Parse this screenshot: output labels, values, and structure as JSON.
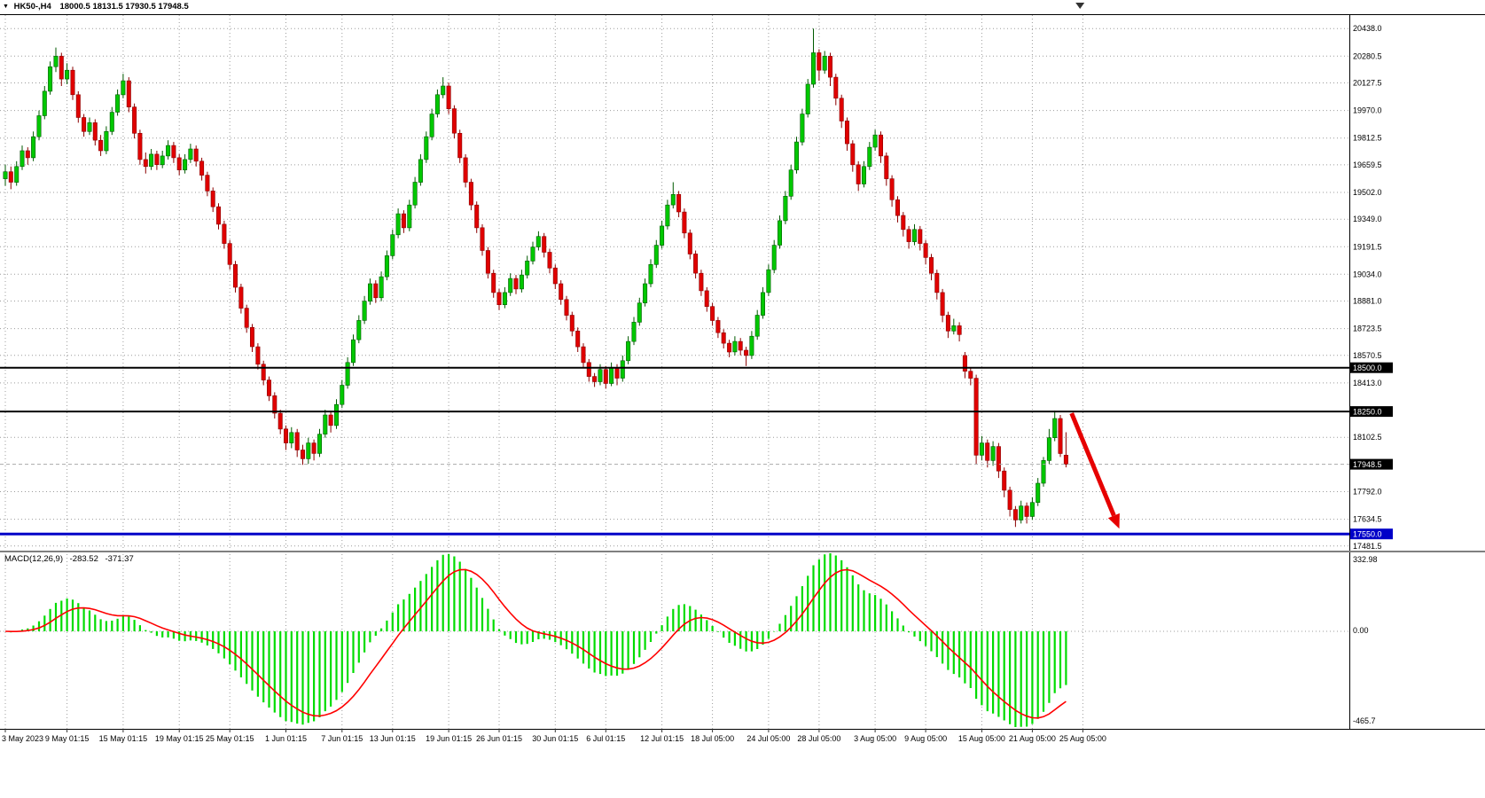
{
  "info_bar": {
    "marker_icon": "▼",
    "symbol_period": "HK50-,H4",
    "ohlc": "18000.5 18131.5 17930.5 17948.5"
  },
  "chart_data": {
    "type": "candlestick",
    "symbol": "HK50-",
    "timeframe": "H4",
    "current_bar": {
      "open": 18000.5,
      "high": 18131.5,
      "low": 17930.5,
      "close": 17948.5
    },
    "price_axis": {
      "min": 17460,
      "max": 20500,
      "labels": [
        20438.0,
        20280.5,
        20127.5,
        19970.0,
        19812.5,
        19659.5,
        19502.0,
        19349.0,
        19191.5,
        19034.0,
        18881.0,
        18723.5,
        18570.5,
        18413.0,
        18102.5,
        17792.0,
        17634.5,
        17481.5
      ]
    },
    "special_price_labels": [
      {
        "value": 18500.0,
        "text": "18500.0",
        "bg": "#000000"
      },
      {
        "value": 18250.0,
        "text": "18250.0",
        "bg": "#000000"
      },
      {
        "value": 17948.5,
        "text": "17948.5",
        "bg": "#000000"
      },
      {
        "value": 17550.0,
        "text": "17550.0",
        "bg": "#0000C8"
      }
    ],
    "hlines": [
      {
        "value": 18500.0,
        "color": "#000000",
        "width": 2
      },
      {
        "value": 18250.0,
        "color": "#000000",
        "width": 2
      },
      {
        "value": 17550.0,
        "color": "#0000C8",
        "width": 3
      },
      {
        "value": 17948.5,
        "color": "#AAAAAA",
        "width": 1,
        "dashed": true
      }
    ],
    "x_labels": [
      {
        "i": 0,
        "text": "3 May 2023"
      },
      {
        "i": 11,
        "text": "9 May 01:15"
      },
      {
        "i": 21,
        "text": "15 May 01:15"
      },
      {
        "i": 31,
        "text": "19 May 01:15"
      },
      {
        "i": 40,
        "text": "25 May 01:15"
      },
      {
        "i": 50,
        "text": "1 Jun 01:15"
      },
      {
        "i": 60,
        "text": "7 Jun 01:15"
      },
      {
        "i": 69,
        "text": "13 Jun 01:15"
      },
      {
        "i": 79,
        "text": "19 Jun 01:15"
      },
      {
        "i": 88,
        "text": "26 Jun 01:15"
      },
      {
        "i": 98,
        "text": "30 Jun 01:15"
      },
      {
        "i": 107,
        "text": "6 Jul 01:15"
      },
      {
        "i": 117,
        "text": "12 Jul 01:15"
      },
      {
        "i": 126,
        "text": "18 Jul 05:00"
      },
      {
        "i": 136,
        "text": "24 Jul 05:00"
      },
      {
        "i": 145,
        "text": "28 Jul 05:00"
      },
      {
        "i": 155,
        "text": "3 Aug 05:00"
      },
      {
        "i": 164,
        "text": "9 Aug 05:00"
      },
      {
        "i": 174,
        "text": "15 Aug 05:00"
      },
      {
        "i": 183,
        "text": "21 Aug 05:00"
      },
      {
        "i": 192,
        "text": "25 Aug 05:00"
      }
    ],
    "candles": [
      [
        19580,
        19660,
        19540,
        19620
      ],
      [
        19620,
        19650,
        19520,
        19560
      ],
      [
        19560,
        19680,
        19540,
        19650
      ],
      [
        19650,
        19770,
        19630,
        19740
      ],
      [
        19740,
        19760,
        19660,
        19700
      ],
      [
        19700,
        19850,
        19680,
        19820
      ],
      [
        19820,
        19970,
        19800,
        19940
      ],
      [
        19940,
        20110,
        19920,
        20080
      ],
      [
        20080,
        20250,
        20060,
        20220
      ],
      [
        20220,
        20330,
        20190,
        20280
      ],
      [
        20280,
        20300,
        20110,
        20150
      ],
      [
        20150,
        20240,
        20120,
        20200
      ],
      [
        20200,
        20220,
        20030,
        20060
      ],
      [
        20060,
        20080,
        19900,
        19930
      ],
      [
        19930,
        19950,
        19820,
        19850
      ],
      [
        19850,
        19930,
        19830,
        19900
      ],
      [
        19900,
        19920,
        19770,
        19800
      ],
      [
        19800,
        19830,
        19710,
        19740
      ],
      [
        19740,
        19880,
        19720,
        19850
      ],
      [
        19850,
        19990,
        19830,
        19960
      ],
      [
        19960,
        20090,
        19940,
        20060
      ],
      [
        20060,
        20180,
        20040,
        20140
      ],
      [
        20140,
        20160,
        19960,
        19990
      ],
      [
        19990,
        20010,
        19810,
        19840
      ],
      [
        19840,
        19860,
        19660,
        19690
      ],
      [
        19690,
        19730,
        19610,
        19650
      ],
      [
        19650,
        19750,
        19630,
        19720
      ],
      [
        19720,
        19740,
        19630,
        19660
      ],
      [
        19660,
        19740,
        19640,
        19710
      ],
      [
        19710,
        19800,
        19690,
        19770
      ],
      [
        19770,
        19790,
        19670,
        19700
      ],
      [
        19700,
        19720,
        19600,
        19630
      ],
      [
        19630,
        19720,
        19610,
        19690
      ],
      [
        19690,
        19780,
        19670,
        19750
      ],
      [
        19750,
        19770,
        19650,
        19680
      ],
      [
        19680,
        19700,
        19570,
        19600
      ],
      [
        19600,
        19620,
        19480,
        19510
      ],
      [
        19510,
        19530,
        19390,
        19420
      ],
      [
        19420,
        19440,
        19290,
        19320
      ],
      [
        19320,
        19340,
        19180,
        19210
      ],
      [
        19210,
        19230,
        19060,
        19090
      ],
      [
        19090,
        19110,
        18930,
        18960
      ],
      [
        18960,
        18980,
        18810,
        18840
      ],
      [
        18840,
        18860,
        18700,
        18730
      ],
      [
        18730,
        18750,
        18590,
        18620
      ],
      [
        18620,
        18640,
        18490,
        18520
      ],
      [
        18520,
        18540,
        18400,
        18430
      ],
      [
        18430,
        18450,
        18310,
        18340
      ],
      [
        18340,
        18360,
        18210,
        18240
      ],
      [
        18240,
        18260,
        18120,
        18150
      ],
      [
        18150,
        18170,
        18030,
        18070
      ],
      [
        18070,
        18160,
        18040,
        18130
      ],
      [
        18130,
        18150,
        17990,
        18030
      ],
      [
        18030,
        18060,
        17945,
        17980
      ],
      [
        17980,
        18100,
        17950,
        18070
      ],
      [
        18070,
        18090,
        17970,
        18010
      ],
      [
        18010,
        18150,
        17990,
        18120
      ],
      [
        18120,
        18260,
        18100,
        18230
      ],
      [
        18230,
        18250,
        18130,
        18170
      ],
      [
        18170,
        18320,
        18150,
        18290
      ],
      [
        18290,
        18430,
        18270,
        18400
      ],
      [
        18400,
        18560,
        18380,
        18530
      ],
      [
        18530,
        18690,
        18510,
        18660
      ],
      [
        18660,
        18800,
        18640,
        18770
      ],
      [
        18770,
        18910,
        18750,
        18880
      ],
      [
        18880,
        19010,
        18860,
        18980
      ],
      [
        18980,
        19000,
        18870,
        18900
      ],
      [
        18900,
        19050,
        18880,
        19020
      ],
      [
        19020,
        19170,
        19000,
        19140
      ],
      [
        19140,
        19290,
        19120,
        19260
      ],
      [
        19260,
        19410,
        19240,
        19380
      ],
      [
        19380,
        19400,
        19270,
        19300
      ],
      [
        19300,
        19460,
        19280,
        19430
      ],
      [
        19430,
        19590,
        19410,
        19560
      ],
      [
        19560,
        19720,
        19540,
        19690
      ],
      [
        19690,
        19850,
        19670,
        19820
      ],
      [
        19820,
        19980,
        19800,
        19950
      ],
      [
        19950,
        20090,
        19930,
        20060
      ],
      [
        20060,
        20160,
        20040,
        20110
      ],
      [
        20110,
        20130,
        19950,
        19980
      ],
      [
        19980,
        20000,
        19810,
        19840
      ],
      [
        19840,
        19860,
        19670,
        19700
      ],
      [
        19700,
        19720,
        19530,
        19560
      ],
      [
        19560,
        19580,
        19400,
        19430
      ],
      [
        19430,
        19450,
        19270,
        19300
      ],
      [
        19300,
        19320,
        19140,
        19170
      ],
      [
        19170,
        19190,
        19010,
        19040
      ],
      [
        19040,
        19060,
        18900,
        18930
      ],
      [
        18930,
        18950,
        18830,
        18860
      ],
      [
        18860,
        18960,
        18840,
        18930
      ],
      [
        18930,
        19040,
        18910,
        19010
      ],
      [
        19010,
        19030,
        18920,
        18950
      ],
      [
        18950,
        19060,
        18930,
        19030
      ],
      [
        19030,
        19140,
        19010,
        19110
      ],
      [
        19110,
        19220,
        19090,
        19190
      ],
      [
        19190,
        19280,
        19170,
        19250
      ],
      [
        19250,
        19270,
        19130,
        19160
      ],
      [
        19160,
        19180,
        19040,
        19070
      ],
      [
        19070,
        19090,
        18950,
        18980
      ],
      [
        18980,
        19000,
        18860,
        18890
      ],
      [
        18890,
        18910,
        18770,
        18800
      ],
      [
        18800,
        18820,
        18680,
        18710
      ],
      [
        18710,
        18730,
        18590,
        18620
      ],
      [
        18620,
        18640,
        18500,
        18530
      ],
      [
        18530,
        18550,
        18420,
        18450
      ],
      [
        18450,
        18470,
        18390,
        18420
      ],
      [
        18420,
        18520,
        18400,
        18490
      ],
      [
        18490,
        18510,
        18380,
        18410
      ],
      [
        18410,
        18530,
        18395,
        18500
      ],
      [
        18500,
        18520,
        18400,
        18440
      ],
      [
        18440,
        18570,
        18420,
        18540
      ],
      [
        18540,
        18680,
        18520,
        18650
      ],
      [
        18650,
        18790,
        18630,
        18760
      ],
      [
        18760,
        18900,
        18740,
        18870
      ],
      [
        18870,
        19010,
        18850,
        18980
      ],
      [
        18980,
        19120,
        18960,
        19090
      ],
      [
        19090,
        19230,
        19070,
        19200
      ],
      [
        19200,
        19340,
        19180,
        19310
      ],
      [
        19310,
        19460,
        19290,
        19430
      ],
      [
        19430,
        19560,
        19410,
        19490
      ],
      [
        19490,
        19510,
        19360,
        19390
      ],
      [
        19390,
        19410,
        19240,
        19270
      ],
      [
        19270,
        19290,
        19120,
        19150
      ],
      [
        19150,
        19170,
        19010,
        19040
      ],
      [
        19040,
        19060,
        18910,
        18940
      ],
      [
        18940,
        18960,
        18820,
        18850
      ],
      [
        18850,
        18870,
        18740,
        18770
      ],
      [
        18770,
        18790,
        18670,
        18700
      ],
      [
        18700,
        18720,
        18610,
        18640
      ],
      [
        18640,
        18660,
        18560,
        18590
      ],
      [
        18590,
        18680,
        18570,
        18650
      ],
      [
        18650,
        18670,
        18570,
        18600
      ],
      [
        18600,
        18620,
        18510,
        18570
      ],
      [
        18570,
        18710,
        18550,
        18680
      ],
      [
        18680,
        18830,
        18660,
        18800
      ],
      [
        18800,
        18960,
        18780,
        18930
      ],
      [
        18930,
        19090,
        18910,
        19060
      ],
      [
        19060,
        19230,
        19040,
        19200
      ],
      [
        19200,
        19370,
        19180,
        19340
      ],
      [
        19340,
        19510,
        19320,
        19480
      ],
      [
        19480,
        19660,
        19460,
        19630
      ],
      [
        19630,
        19820,
        19610,
        19790
      ],
      [
        19790,
        19980,
        19770,
        19950
      ],
      [
        19950,
        20150,
        19930,
        20120
      ],
      [
        20120,
        20438,
        20100,
        20300
      ],
      [
        20300,
        20320,
        20140,
        20200
      ],
      [
        20200,
        20310,
        20180,
        20280
      ],
      [
        20280,
        20300,
        20110,
        20160
      ],
      [
        20160,
        20180,
        20000,
        20040
      ],
      [
        20040,
        20060,
        19870,
        19910
      ],
      [
        19910,
        19930,
        19740,
        19780
      ],
      [
        19780,
        19800,
        19620,
        19660
      ],
      [
        19660,
        19680,
        19510,
        19550
      ],
      [
        19550,
        19680,
        19530,
        19650
      ],
      [
        19650,
        19790,
        19630,
        19760
      ],
      [
        19760,
        19860,
        19740,
        19830
      ],
      [
        19830,
        19850,
        19670,
        19710
      ],
      [
        19710,
        19730,
        19540,
        19580
      ],
      [
        19580,
        19600,
        19420,
        19460
      ],
      [
        19460,
        19480,
        19330,
        19370
      ],
      [
        19370,
        19390,
        19250,
        19290
      ],
      [
        19290,
        19310,
        19180,
        19220
      ],
      [
        19220,
        19320,
        19200,
        19290
      ],
      [
        19290,
        19310,
        19170,
        19210
      ],
      [
        19210,
        19230,
        19090,
        19130
      ],
      [
        19130,
        19150,
        19000,
        19040
      ],
      [
        19040,
        19060,
        18890,
        18930
      ],
      [
        18930,
        18950,
        18760,
        18800
      ],
      [
        18800,
        18820,
        18670,
        18710
      ],
      [
        18710,
        18780,
        18690,
        18740
      ],
      [
        18740,
        18760,
        18650,
        18690
      ],
      [
        18570,
        18590,
        18440,
        18480
      ],
      [
        18480,
        18500,
        18400,
        18440
      ],
      [
        18440,
        18460,
        17950,
        18000
      ],
      [
        18000,
        18110,
        17970,
        18070
      ],
      [
        18070,
        18090,
        17930,
        17970
      ],
      [
        17970,
        18080,
        17940,
        18050
      ],
      [
        18050,
        18070,
        17870,
        17910
      ],
      [
        17910,
        17930,
        17760,
        17800
      ],
      [
        17800,
        17820,
        17650,
        17690
      ],
      [
        17690,
        17710,
        17590,
        17630
      ],
      [
        17630,
        17740,
        17610,
        17710
      ],
      [
        17710,
        17730,
        17610,
        17650
      ],
      [
        17650,
        17760,
        17630,
        17730
      ],
      [
        17730,
        17870,
        17710,
        17840
      ],
      [
        17840,
        17990,
        17820,
        17970
      ],
      [
        17970,
        18150,
        17950,
        18100
      ],
      [
        18100,
        18255,
        18080,
        18210
      ],
      [
        18210,
        18230,
        17990,
        18010
      ],
      [
        18000.5,
        18131.5,
        17930.5,
        17948.5
      ]
    ],
    "macd": {
      "label": "MACD(12,26,9)",
      "value_main": "-283.52",
      "value_signal": "-371.37",
      "scale_top": "332.98",
      "scale_zero": "0.00",
      "scale_bottom": "-465.7",
      "fast": 12,
      "slow": 26,
      "signal_period": 9,
      "histogram_color": "#00DC00",
      "signal_color": "#FF0000"
    },
    "annotations": {
      "arrow": {
        "from_i": 190,
        "from_price": 18240,
        "to_i": 198.5,
        "to_price": 17580,
        "color": "#E60000",
        "width": 5
      }
    },
    "shift_marker_i": 191.5,
    "colors": {
      "bull": "#00C800",
      "bear": "#E00000",
      "bull_wick": "#005A00",
      "bear_wick": "#8B0000",
      "grid": "#9C9C9C",
      "background": "#FFFFFF"
    }
  }
}
